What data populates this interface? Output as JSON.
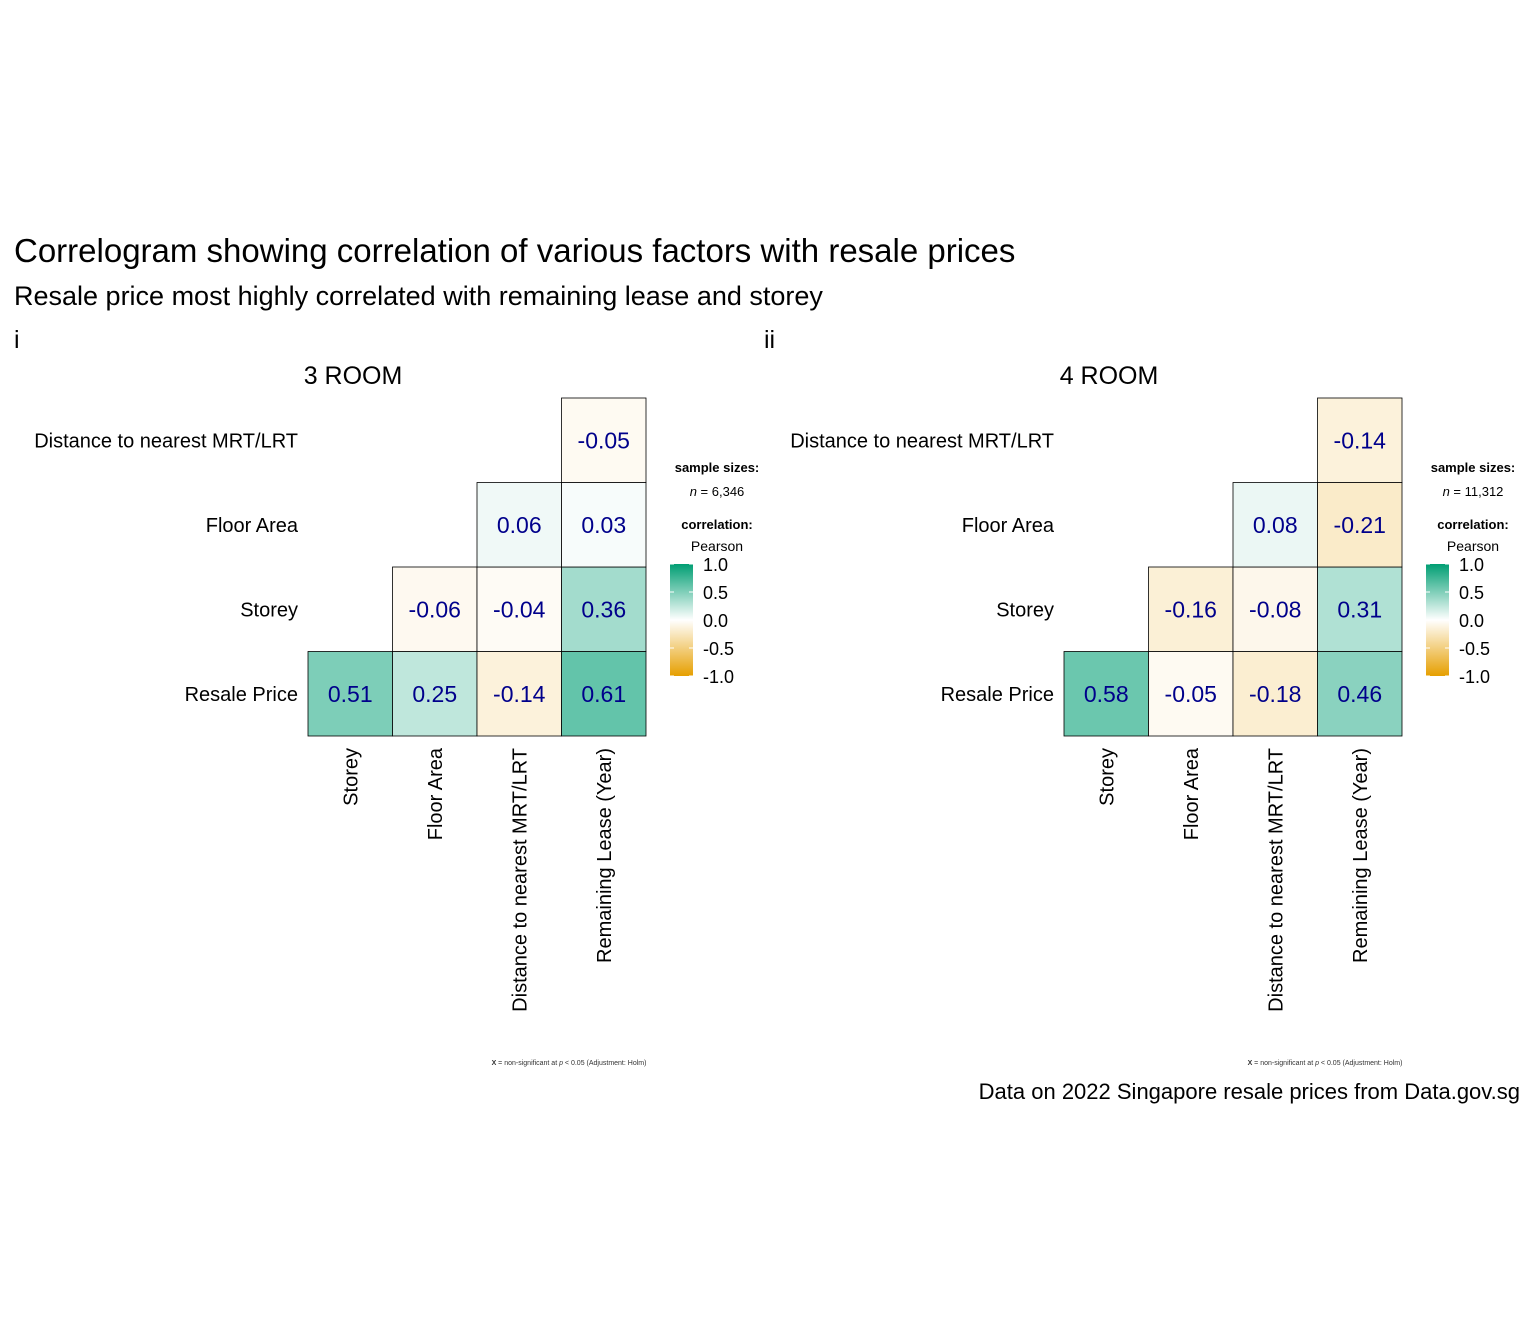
{
  "title": "Correlogram showing correlation of various factors with resale prices",
  "subtitle": "Resale price most highly correlated with remaining lease and storey",
  "caption": "Data on 2022 Singapore resale prices from Data.gov.sg",
  "colors": {
    "low": "#E69F00",
    "mid": "#FFFFFF",
    "high": "#009E73",
    "value_text": "#00008B"
  },
  "chart_data": [
    {
      "type": "heatmap",
      "tag": "i",
      "title": "3 ROOM",
      "x_labels": [
        "Storey",
        "Floor Area",
        "Distance to nearest MRT/LRT",
        "Remaining Lease (Year)"
      ],
      "y_labels": [
        "Resale Price",
        "Storey",
        "Floor Area",
        "Distance to nearest MRT/LRT"
      ],
      "matrix": [
        [
          0.51,
          0.25,
          -0.14,
          0.61
        ],
        [
          null,
          -0.06,
          -0.04,
          0.36
        ],
        [
          null,
          null,
          0.06,
          0.03
        ],
        [
          null,
          null,
          null,
          -0.05
        ]
      ],
      "labels": [
        [
          "0.51",
          "0.25",
          "-0.14",
          "0.61"
        ],
        [
          null,
          "-0.06",
          "-0.04",
          "0.36"
        ],
        [
          null,
          null,
          "0.06",
          "0.03"
        ],
        [
          null,
          null,
          null,
          "-0.05"
        ]
      ],
      "legend": {
        "sample_title": "sample sizes:",
        "n_italic": "n",
        "n_rest": " = 6,346",
        "corr_title": "correlation:",
        "corr_method": "Pearson",
        "ticks": [
          "1.0",
          "0.5",
          "0.0",
          "-0.5",
          "-1.0"
        ],
        "range": [
          -1,
          1
        ]
      },
      "footnote": {
        "x": "X",
        "pre": " = non-significant at ",
        "p": "p",
        "post": " < 0.05 (Adjustment: Holm)"
      }
    },
    {
      "type": "heatmap",
      "tag": "ii",
      "title": "4 ROOM",
      "x_labels": [
        "Storey",
        "Floor Area",
        "Distance to nearest MRT/LRT",
        "Remaining Lease (Year)"
      ],
      "y_labels": [
        "Resale Price",
        "Storey",
        "Floor Area",
        "Distance to nearest MRT/LRT"
      ],
      "matrix": [
        [
          0.58,
          -0.05,
          -0.18,
          0.46
        ],
        [
          null,
          -0.16,
          -0.08,
          0.31
        ],
        [
          null,
          null,
          0.08,
          -0.21
        ],
        [
          null,
          null,
          null,
          -0.14
        ]
      ],
      "labels": [
        [
          "0.58",
          "-0.05",
          "-0.18",
          "0.46"
        ],
        [
          null,
          "-0.16",
          "-0.08",
          "0.31"
        ],
        [
          null,
          null,
          "0.08",
          "-0.21"
        ],
        [
          null,
          null,
          null,
          "-0.14"
        ]
      ],
      "legend": {
        "sample_title": "sample sizes:",
        "n_italic": "n",
        "n_rest": " = 11,312",
        "corr_title": "correlation:",
        "corr_method": "Pearson",
        "ticks": [
          "1.0",
          "0.5",
          "0.0",
          "-0.5",
          "-1.0"
        ],
        "range": [
          -1,
          1
        ]
      },
      "footnote": {
        "x": "X",
        "pre": " = non-significant at ",
        "p": "p",
        "post": " < 0.05 (Adjustment: Holm)"
      }
    }
  ]
}
